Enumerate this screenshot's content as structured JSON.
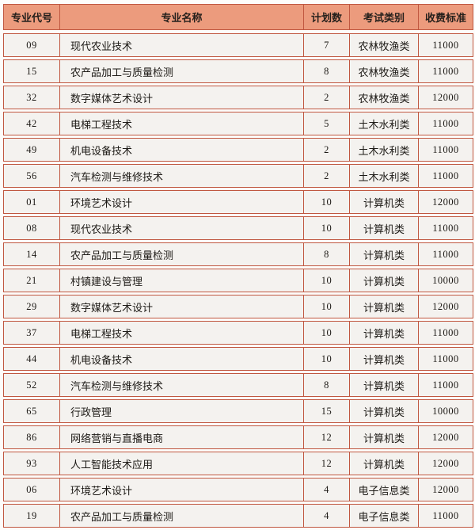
{
  "colors": {
    "header_bg": "#ec9b7d",
    "border": "#c05740",
    "row_bg": "#f4f2ef",
    "page_bg": "#fdfcfa"
  },
  "table": {
    "columns": [
      {
        "key": "code",
        "label": "专业代号"
      },
      {
        "key": "name",
        "label": "专业名称"
      },
      {
        "key": "plan",
        "label": "计划数"
      },
      {
        "key": "category",
        "label": "考试类别"
      },
      {
        "key": "fee",
        "label": "收费标准"
      }
    ],
    "rows": [
      {
        "code": "09",
        "name": "现代农业技术",
        "plan": "7",
        "category": "农林牧渔类",
        "fee": "11000"
      },
      {
        "code": "15",
        "name": "农产品加工与质量检测",
        "plan": "8",
        "category": "农林牧渔类",
        "fee": "11000"
      },
      {
        "code": "32",
        "name": "数字媒体艺术设计",
        "plan": "2",
        "category": "农林牧渔类",
        "fee": "12000"
      },
      {
        "code": "42",
        "name": "电梯工程技术",
        "plan": "5",
        "category": "土木水利类",
        "fee": "11000"
      },
      {
        "code": "49",
        "name": "机电设备技术",
        "plan": "2",
        "category": "土木水利类",
        "fee": "11000"
      },
      {
        "code": "56",
        "name": "汽车检测与维修技术",
        "plan": "2",
        "category": "土木水利类",
        "fee": "11000"
      },
      {
        "code": "01",
        "name": "环境艺术设计",
        "plan": "10",
        "category": "计算机类",
        "fee": "12000"
      },
      {
        "code": "08",
        "name": "现代农业技术",
        "plan": "10",
        "category": "计算机类",
        "fee": "11000"
      },
      {
        "code": "14",
        "name": "农产品加工与质量检测",
        "plan": "8",
        "category": "计算机类",
        "fee": "11000"
      },
      {
        "code": "21",
        "name": "村镇建设与管理",
        "plan": "10",
        "category": "计算机类",
        "fee": "10000"
      },
      {
        "code": "29",
        "name": "数字媒体艺术设计",
        "plan": "10",
        "category": "计算机类",
        "fee": "12000"
      },
      {
        "code": "37",
        "name": "电梯工程技术",
        "plan": "10",
        "category": "计算机类",
        "fee": "11000"
      },
      {
        "code": "44",
        "name": "机电设备技术",
        "plan": "10",
        "category": "计算机类",
        "fee": "11000"
      },
      {
        "code": "52",
        "name": "汽车检测与维修技术",
        "plan": "8",
        "category": "计算机类",
        "fee": "11000"
      },
      {
        "code": "65",
        "name": "行政管理",
        "plan": "15",
        "category": "计算机类",
        "fee": "10000"
      },
      {
        "code": "86",
        "name": "网络营销与直播电商",
        "plan": "12",
        "category": "计算机类",
        "fee": "12000"
      },
      {
        "code": "93",
        "name": "人工智能技术应用",
        "plan": "12",
        "category": "计算机类",
        "fee": "12000"
      },
      {
        "code": "06",
        "name": "环境艺术设计",
        "plan": "4",
        "category": "电子信息类",
        "fee": "12000"
      },
      {
        "code": "19",
        "name": "农产品加工与质量检测",
        "plan": "4",
        "category": "电子信息类",
        "fee": "11000"
      }
    ]
  }
}
